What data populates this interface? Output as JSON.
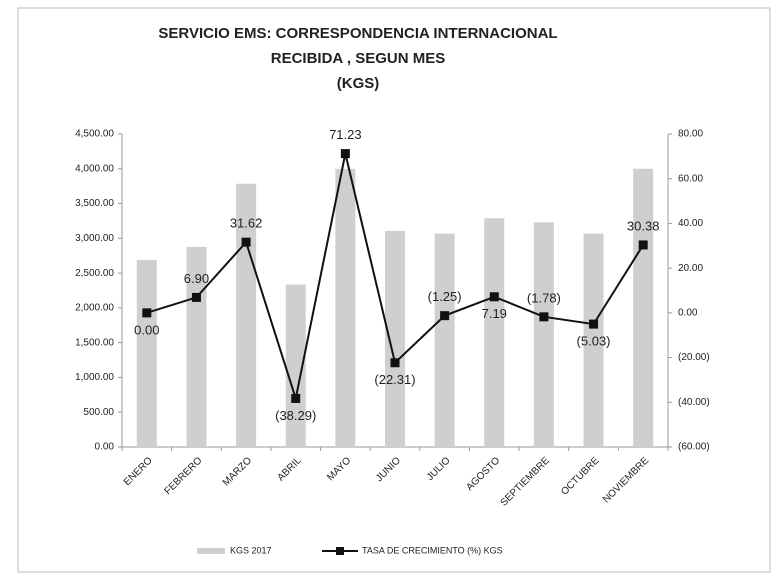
{
  "chart_data": {
    "type": "bar_line",
    "title": [
      "SERVICIO EMS: CORRESPONDENCIA INTERNACIONAL",
      "RECIBIDA , SEGUN MES",
      "(KGS)"
    ],
    "categories": [
      "ENERO",
      "FEBRERO",
      "MARZO",
      "ABRIL",
      "MAYO",
      "JUNIO",
      "JULIO",
      "AGOSTO",
      "SEPTIEMBRE",
      "OCTUBRE",
      "NOVIEMBRE"
    ],
    "series": [
      {
        "name": "KGS 2017",
        "color": "#cfcfd2",
        "type": "bar",
        "axis": "y",
        "values": [
          2690,
          2876,
          3785,
          2336,
          3999,
          3107,
          3068,
          3289,
          3231,
          3068,
          4000
        ]
      },
      {
        "name": "TASA DE CRECIMIENTO  (%) KGS",
        "color": "#111111",
        "type": "line",
        "axis": "y2",
        "values": [
          0,
          6.9,
          31.62,
          -38.29,
          71.23,
          -22.31,
          -1.25,
          7.19,
          -1.78,
          -5.03,
          30.38
        ],
        "value_labels": [
          "0.00",
          "6.90",
          "31.62",
          "(38.29)",
          "71.23",
          "(22.31)",
          "(1.25)",
          "7.19",
          "(1.78)",
          "(5.03)",
          "30.38"
        ]
      }
    ],
    "ylim": [
      0,
      4500
    ],
    "yticks": [
      {
        "value": 0,
        "label": "0.00"
      },
      {
        "value": 500,
        "label": "500.00"
      },
      {
        "value": 1000,
        "label": "1,000.00"
      },
      {
        "value": 1500,
        "label": "1,500.00"
      },
      {
        "value": 2000,
        "label": "2,000.00"
      },
      {
        "value": 2500,
        "label": "2,500.00"
      },
      {
        "value": 3000,
        "label": "3,000.00"
      },
      {
        "value": 3500,
        "label": "3,500.00"
      },
      {
        "value": 4000,
        "label": "4,000.00"
      },
      {
        "value": 4500,
        "label": "4,500.00"
      }
    ],
    "y2lim": [
      -60,
      80
    ],
    "y2ticks": [
      {
        "value": -60,
        "label": "(60.00)"
      },
      {
        "value": -40,
        "label": "(40.00)"
      },
      {
        "value": -20,
        "label": "(20.00)"
      },
      {
        "value": 0,
        "label": "0.00"
      },
      {
        "value": 20,
        "label": "20.00"
      },
      {
        "value": 40,
        "label": "40.00"
      },
      {
        "value": 60,
        "label": "60.00"
      },
      {
        "value": 80,
        "label": "80.00"
      }
    ],
    "legend": "bottom"
  }
}
